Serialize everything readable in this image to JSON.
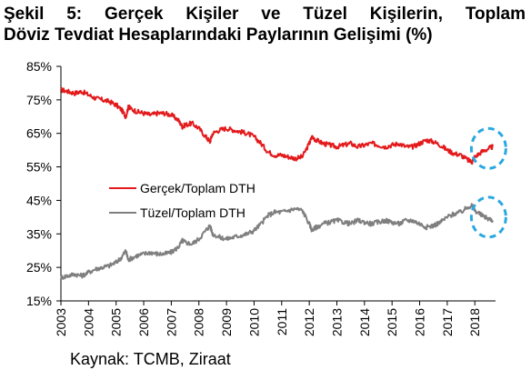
{
  "title_line_1": "Şekil 5: Gerçek Kişiler ve Tüzel Kişilerin, Toplam",
  "title_line_2": "Döviz Tevdiat Hesaplarındaki Paylarının Gelişimi (%)",
  "source": "Kaynak: TCMB, Ziraat",
  "colors": {
    "gercek": "#e31a1c",
    "tuzel": "#7f7f7f",
    "highlight": "#29a8e0"
  },
  "chart_data": {
    "type": "line",
    "title": "Şekil 5: Gerçek Kişiler ve Tüzel Kişilerin, Toplam Döviz Tevdiat Hesaplarındaki Paylarının Gelişimi (%)",
    "xlabel": "",
    "ylabel": "",
    "xlim": [
      2003,
      2018.75
    ],
    "ylim": [
      15,
      85
    ],
    "y_ticks": [
      "15%",
      "25%",
      "35%",
      "45%",
      "55%",
      "65%",
      "75%",
      "85%"
    ],
    "y_tick_values": [
      15,
      25,
      35,
      45,
      55,
      65,
      75,
      85
    ],
    "x_ticks": [
      "2003",
      "2004",
      "2005",
      "2006",
      "2007",
      "2008",
      "2009",
      "2010",
      "2011",
      "2012",
      "2013",
      "2014",
      "2015",
      "2016",
      "2017",
      "2018"
    ],
    "x_tick_values": [
      2003,
      2004,
      2005,
      2006,
      2007,
      2008,
      2009,
      2010,
      2011,
      2012,
      2013,
      2014,
      2015,
      2016,
      2017,
      2018
    ],
    "legend_position": "center-left",
    "grid": false,
    "series": [
      {
        "name": "Gerçek/Toplam DTH",
        "color": "#e31a1c",
        "x": [
          2003.0,
          2003.25,
          2003.5,
          2003.75,
          2004.0,
          2004.25,
          2004.5,
          2004.75,
          2005.0,
          2005.2,
          2005.35,
          2005.45,
          2005.5,
          2005.75,
          2006.0,
          2006.25,
          2006.5,
          2006.75,
          2007.0,
          2007.25,
          2007.4,
          2007.5,
          2007.75,
          2008.0,
          2008.25,
          2008.4,
          2008.5,
          2008.75,
          2009.0,
          2009.25,
          2009.5,
          2009.75,
          2010.0,
          2010.25,
          2010.5,
          2010.75,
          2011.0,
          2011.25,
          2011.5,
          2011.75,
          2012.0,
          2012.1,
          2012.25,
          2012.5,
          2012.75,
          2013.0,
          2013.25,
          2013.5,
          2013.75,
          2014.0,
          2014.25,
          2014.5,
          2014.75,
          2015.0,
          2015.25,
          2015.5,
          2015.75,
          2016.0,
          2016.25,
          2016.5,
          2016.75,
          2017.0,
          2017.25,
          2017.5,
          2017.75,
          2017.9,
          2018.0,
          2018.25,
          2018.5,
          2018.65
        ],
        "y": [
          78.0,
          77.5,
          77.0,
          77.5,
          76.5,
          75.5,
          75.0,
          74.5,
          73.5,
          72.0,
          70.0,
          73.0,
          72.5,
          71.5,
          71.0,
          70.5,
          71.0,
          71.0,
          70.5,
          69.0,
          67.0,
          67.5,
          68.0,
          66.5,
          64.0,
          62.5,
          65.0,
          66.0,
          66.5,
          66.0,
          65.5,
          65.0,
          64.0,
          62.0,
          59.5,
          58.5,
          58.5,
          58.0,
          57.5,
          58.0,
          62.0,
          64.0,
          63.0,
          62.0,
          61.5,
          61.0,
          61.5,
          62.0,
          61.0,
          61.5,
          62.0,
          61.5,
          61.0,
          61.5,
          62.0,
          61.0,
          61.0,
          62.0,
          63.0,
          62.5,
          61.5,
          60.0,
          59.0,
          58.5,
          57.0,
          56.5,
          58.0,
          59.5,
          60.5,
          61.0
        ]
      },
      {
        "name": "Tüzel/Toplam DTH",
        "color": "#7f7f7f",
        "x": [
          2003.0,
          2003.25,
          2003.5,
          2003.75,
          2004.0,
          2004.25,
          2004.5,
          2004.75,
          2005.0,
          2005.2,
          2005.35,
          2005.45,
          2005.5,
          2005.75,
          2006.0,
          2006.25,
          2006.5,
          2006.75,
          2007.0,
          2007.25,
          2007.4,
          2007.5,
          2007.75,
          2008.0,
          2008.25,
          2008.4,
          2008.5,
          2008.75,
          2009.0,
          2009.25,
          2009.5,
          2009.75,
          2010.0,
          2010.25,
          2010.5,
          2010.75,
          2011.0,
          2011.25,
          2011.5,
          2011.75,
          2012.0,
          2012.1,
          2012.25,
          2012.5,
          2012.75,
          2013.0,
          2013.25,
          2013.5,
          2013.75,
          2014.0,
          2014.25,
          2014.5,
          2014.75,
          2015.0,
          2015.25,
          2015.5,
          2015.75,
          2016.0,
          2016.25,
          2016.5,
          2016.75,
          2017.0,
          2017.25,
          2017.5,
          2017.75,
          2017.9,
          2018.0,
          2018.25,
          2018.5,
          2018.65
        ],
        "y": [
          22.0,
          22.5,
          23.0,
          22.5,
          23.5,
          24.5,
          25.0,
          25.5,
          26.5,
          28.0,
          30.0,
          27.0,
          27.5,
          28.5,
          29.0,
          29.5,
          29.0,
          29.0,
          29.5,
          31.0,
          33.0,
          32.5,
          32.0,
          33.5,
          36.0,
          37.5,
          35.0,
          34.0,
          33.5,
          34.0,
          34.5,
          35.0,
          36.0,
          38.0,
          40.5,
          41.5,
          41.5,
          42.0,
          42.5,
          42.0,
          38.0,
          36.0,
          37.0,
          38.0,
          38.5,
          39.0,
          38.5,
          38.0,
          39.0,
          38.5,
          38.0,
          38.5,
          39.0,
          38.5,
          38.0,
          39.0,
          39.0,
          38.0,
          37.0,
          37.5,
          38.5,
          40.0,
          41.0,
          41.5,
          43.0,
          43.5,
          42.0,
          40.5,
          39.5,
          39.0
        ]
      }
    ],
    "highlight_circles": [
      {
        "x": 2018.4,
        "y": 60.5
      },
      {
        "x": 2018.4,
        "y": 40.0
      }
    ]
  }
}
